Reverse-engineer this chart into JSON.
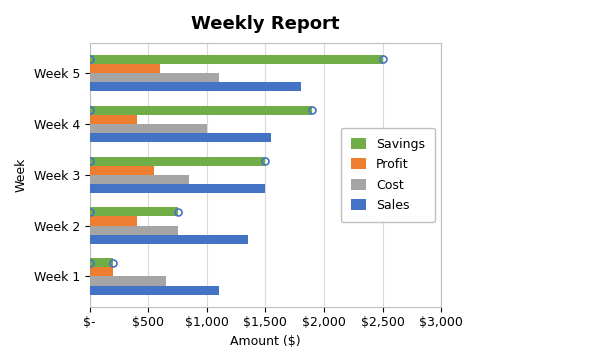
{
  "title": "Weekly Report",
  "xlabel": "Amount ($)",
  "ylabel": "Week",
  "categories": [
    "Week 1",
    "Week 2",
    "Week 3",
    "Week 4",
    "Week 5"
  ],
  "series": {
    "Savings": [
      200,
      750,
      1500,
      1900,
      2500
    ],
    "Profit": [
      200,
      400,
      550,
      400,
      600
    ],
    "Cost": [
      650,
      750,
      850,
      1000,
      1100
    ],
    "Sales": [
      1100,
      1350,
      1500,
      1550,
      1800
    ]
  },
  "colors": {
    "Savings": "#70ad47",
    "Profit": "#ed7d31",
    "Cost": "#a5a5a5",
    "Sales": "#4472c4"
  },
  "xlim": [
    0,
    3000
  ],
  "xticks": [
    0,
    500,
    1000,
    1500,
    2000,
    2500,
    3000
  ],
  "xtick_labels": [
    "$-",
    "$500",
    "$1,000",
    "$1,500",
    "$2,000",
    "$2,500",
    "$3,000"
  ],
  "bar_height": 0.18,
  "legend_order": [
    "Savings",
    "Profit",
    "Cost",
    "Sales"
  ],
  "background_color": "#ffffff",
  "grid_color": "#d9d9d9",
  "title_fontsize": 13,
  "axis_fontsize": 9,
  "label_fontsize": 9,
  "legend_fontsize": 9
}
